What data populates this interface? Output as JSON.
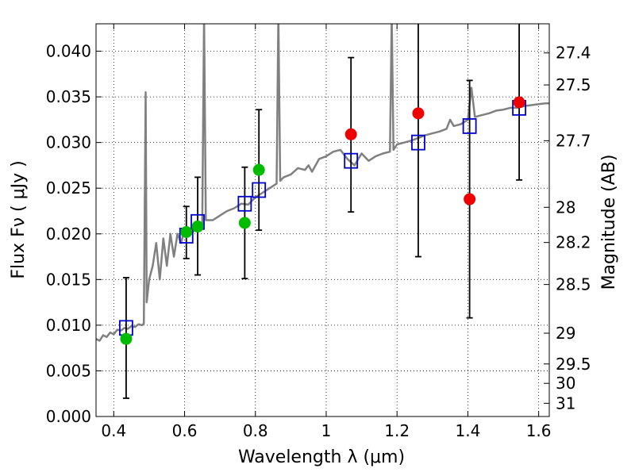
{
  "chart_data": {
    "type": "scatter",
    "title": "",
    "xlabel": "Wavelength  λ (μm)",
    "ylabel": "Flux  Fν ( μJy )",
    "ylabel_right": "Magnitude (AB)",
    "xlim": [
      0.35,
      1.63
    ],
    "ylim": [
      0.0,
      0.043
    ],
    "grid": true,
    "x_ticks": [
      {
        "value": 0.4,
        "label": "0.4"
      },
      {
        "value": 0.6,
        "label": "0.6"
      },
      {
        "value": 0.8,
        "label": "0.8"
      },
      {
        "value": 1.0,
        "label": "1"
      },
      {
        "value": 1.2,
        "label": "1.2"
      },
      {
        "value": 1.4,
        "label": "1.4"
      },
      {
        "value": 1.6,
        "label": "1.6"
      }
    ],
    "y_ticks": [
      {
        "value": 0.0,
        "label": "0.000"
      },
      {
        "value": 0.005,
        "label": "0.005"
      },
      {
        "value": 0.01,
        "label": "0.010"
      },
      {
        "value": 0.015,
        "label": "0.015"
      },
      {
        "value": 0.02,
        "label": "0.020"
      },
      {
        "value": 0.025,
        "label": "0.025"
      },
      {
        "value": 0.03,
        "label": "0.030"
      },
      {
        "value": 0.035,
        "label": "0.035"
      },
      {
        "value": 0.04,
        "label": "0.040"
      }
    ],
    "mag_ticks": [
      {
        "value": 27.4,
        "label": "27.4"
      },
      {
        "value": 27.5,
        "label": "27.5"
      },
      {
        "value": 27.7,
        "label": "27.7"
      },
      {
        "value": 28.0,
        "label": "28"
      },
      {
        "value": 28.2,
        "label": "28.2"
      },
      {
        "value": 28.5,
        "label": "28.5"
      },
      {
        "value": 29.0,
        "label": "29"
      },
      {
        "value": 29.5,
        "label": "29.5"
      },
      {
        "value": 30.0,
        "label": "30"
      },
      {
        "value": 31.0,
        "label": "31"
      }
    ],
    "series": [
      {
        "kind": "spectrum",
        "color": "#808080",
        "points": [
          [
            0.35,
            0.0085
          ],
          [
            0.36,
            0.0083
          ],
          [
            0.37,
            0.0089
          ],
          [
            0.38,
            0.0087
          ],
          [
            0.39,
            0.0092
          ],
          [
            0.4,
            0.009
          ],
          [
            0.41,
            0.0095
          ],
          [
            0.42,
            0.0094
          ],
          [
            0.43,
            0.0097
          ],
          [
            0.44,
            0.0096
          ],
          [
            0.45,
            0.0099
          ],
          [
            0.46,
            0.0098
          ],
          [
            0.47,
            0.0101
          ],
          [
            0.48,
            0.01
          ],
          [
            0.485,
            0.0102
          ],
          [
            0.49,
            0.0355
          ],
          [
            0.493,
            0.0125
          ],
          [
            0.5,
            0.015
          ],
          [
            0.51,
            0.0165
          ],
          [
            0.52,
            0.019
          ],
          [
            0.53,
            0.015
          ],
          [
            0.54,
            0.0195
          ],
          [
            0.55,
            0.0165
          ],
          [
            0.56,
            0.02
          ],
          [
            0.57,
            0.0175
          ],
          [
            0.58,
            0.02
          ],
          [
            0.59,
            0.019
          ],
          [
            0.6,
            0.0205
          ],
          [
            0.62,
            0.02
          ],
          [
            0.64,
            0.0212
          ],
          [
            0.65,
            0.021
          ],
          [
            0.655,
            0.044
          ],
          [
            0.66,
            0.0215
          ],
          [
            0.68,
            0.0215
          ],
          [
            0.7,
            0.022
          ],
          [
            0.72,
            0.0225
          ],
          [
            0.74,
            0.0228
          ],
          [
            0.76,
            0.0233
          ],
          [
            0.78,
            0.0232
          ],
          [
            0.8,
            0.024
          ],
          [
            0.82,
            0.0245
          ],
          [
            0.84,
            0.025
          ],
          [
            0.86,
            0.0255
          ],
          [
            0.865,
            0.044
          ],
          [
            0.87,
            0.0258
          ],
          [
            0.88,
            0.0262
          ],
          [
            0.9,
            0.0265
          ],
          [
            0.92,
            0.0272
          ],
          [
            0.94,
            0.027
          ],
          [
            0.95,
            0.0275
          ],
          [
            0.96,
            0.0268
          ],
          [
            0.98,
            0.0282
          ],
          [
            1.0,
            0.0285
          ],
          [
            1.02,
            0.029
          ],
          [
            1.04,
            0.0292
          ],
          [
            1.06,
            0.0282
          ],
          [
            1.08,
            0.0275
          ],
          [
            1.1,
            0.0288
          ],
          [
            1.12,
            0.028
          ],
          [
            1.14,
            0.0285
          ],
          [
            1.16,
            0.0288
          ],
          [
            1.18,
            0.029
          ],
          [
            1.185,
            0.044
          ],
          [
            1.19,
            0.0292
          ],
          [
            1.2,
            0.0298
          ],
          [
            1.22,
            0.03
          ],
          [
            1.24,
            0.0302
          ],
          [
            1.26,
            0.0305
          ],
          [
            1.28,
            0.0308
          ],
          [
            1.3,
            0.031
          ],
          [
            1.32,
            0.0312
          ],
          [
            1.34,
            0.0315
          ],
          [
            1.35,
            0.0325
          ],
          [
            1.36,
            0.0318
          ],
          [
            1.38,
            0.032
          ],
          [
            1.4,
            0.0325
          ],
          [
            1.41,
            0.036
          ],
          [
            1.42,
            0.0328
          ],
          [
            1.44,
            0.033
          ],
          [
            1.46,
            0.0332
          ],
          [
            1.48,
            0.0335
          ],
          [
            1.5,
            0.0336
          ],
          [
            1.52,
            0.0338
          ],
          [
            1.54,
            0.0338
          ],
          [
            1.56,
            0.034
          ],
          [
            1.58,
            0.0341
          ],
          [
            1.6,
            0.0342
          ],
          [
            1.62,
            0.0343
          ],
          [
            1.63,
            0.0343
          ]
        ]
      },
      {
        "kind": "model",
        "color": "#0000cc",
        "marker": "open-square",
        "points": [
          [
            0.435,
            0.0097
          ],
          [
            0.605,
            0.0198
          ],
          [
            0.637,
            0.0213
          ],
          [
            0.77,
            0.0233
          ],
          [
            0.81,
            0.0248
          ],
          [
            1.07,
            0.028
          ],
          [
            1.26,
            0.03
          ],
          [
            1.405,
            0.0318
          ],
          [
            1.545,
            0.0338
          ]
        ]
      },
      {
        "kind": "detections",
        "color": "#00bb00",
        "marker": "filled-circle",
        "points": [
          {
            "x": 0.435,
            "y": 0.0085,
            "err_low": 0.002,
            "err_high": 0.0152
          },
          {
            "x": 0.605,
            "y": 0.0202,
            "err_low": 0.0173,
            "err_high": 0.023
          },
          {
            "x": 0.637,
            "y": 0.0208,
            "err_low": 0.0155,
            "err_high": 0.0262
          },
          {
            "x": 0.77,
            "y": 0.0212,
            "err_low": 0.0151,
            "err_high": 0.0273
          },
          {
            "x": 0.81,
            "y": 0.027,
            "err_low": 0.0204,
            "err_high": 0.0336
          }
        ]
      },
      {
        "kind": "detections",
        "color": "#ee0000",
        "marker": "filled-circle",
        "points": [
          {
            "x": 1.07,
            "y": 0.0309,
            "err_low": 0.0224,
            "err_high": 0.0393
          },
          {
            "x": 1.26,
            "y": 0.0332,
            "err_low": 0.0175,
            "err_high": 0.044
          },
          {
            "x": 1.405,
            "y": 0.0238,
            "err_low": 0.0108,
            "err_high": 0.0368
          },
          {
            "x": 1.545,
            "y": 0.0344,
            "err_low": 0.0259,
            "err_high": 0.044
          }
        ]
      }
    ]
  }
}
